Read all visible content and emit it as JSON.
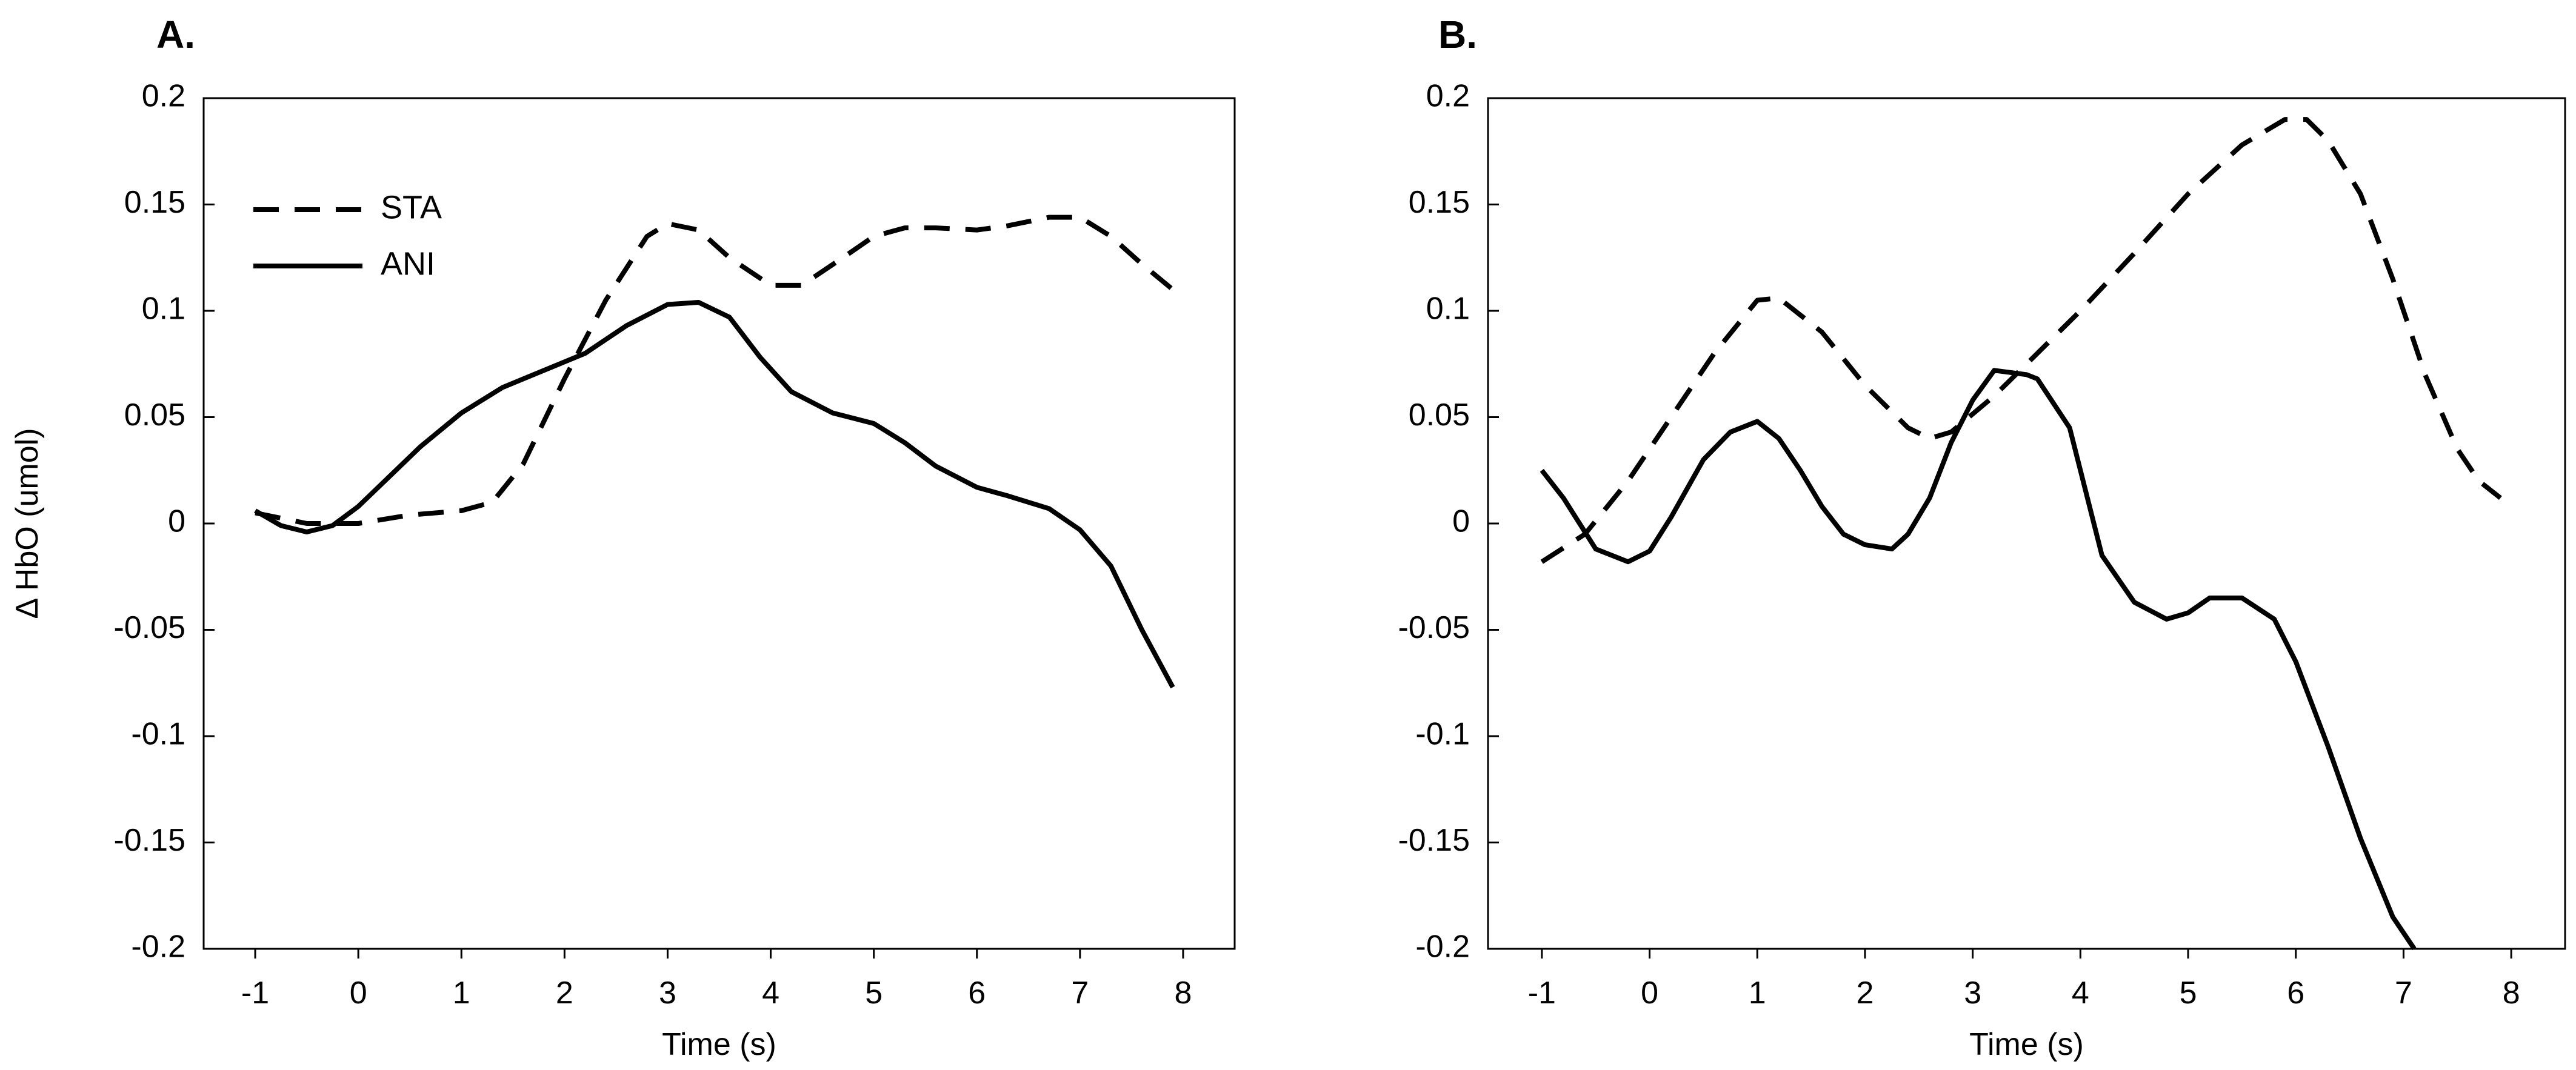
{
  "chart_data": [
    {
      "panel": "A.",
      "type": "line",
      "title": "",
      "xlabel": "Time (s)",
      "ylabel": "Δ HbO (umol)",
      "xlim": [
        -1.5,
        8.5
      ],
      "ylim": [
        -0.2,
        0.2
      ],
      "xticks": [
        -1,
        0,
        1,
        2,
        3,
        4,
        5,
        6,
        7,
        8
      ],
      "yticks": [
        0.2,
        0.15,
        0.1,
        0.05,
        0,
        -0.05,
        -0.1,
        -0.15,
        -0.2
      ],
      "ytick_labels": [
        "0.2",
        "0.15",
        "0.1",
        "0.05",
        "0",
        "-0.05",
        "-0.1",
        "-0.15",
        "-0.2"
      ],
      "legend": [
        {
          "label": "STA",
          "style": "dashed"
        },
        {
          "label": "ANI",
          "style": "solid"
        }
      ],
      "series": [
        {
          "name": "STA",
          "style": "dashed",
          "x": [
            -1.0,
            -0.5,
            0.0,
            0.5,
            1.0,
            1.3,
            1.6,
            2.0,
            2.4,
            2.8,
            3.0,
            3.3,
            3.6,
            4.0,
            4.3,
            4.7,
            5.0,
            5.3,
            5.6,
            6.0,
            6.3,
            6.7,
            7.0,
            7.3,
            7.6,
            7.9
          ],
          "values": [
            0.005,
            0.0,
            0.0,
            0.004,
            0.006,
            0.01,
            0.028,
            0.068,
            0.105,
            0.135,
            0.141,
            0.138,
            0.125,
            0.112,
            0.112,
            0.125,
            0.135,
            0.139,
            0.139,
            0.138,
            0.14,
            0.144,
            0.144,
            0.135,
            0.122,
            0.11
          ]
        },
        {
          "name": "ANI",
          "style": "solid",
          "x": [
            -1.0,
            -0.75,
            -0.5,
            -0.25,
            0.0,
            0.3,
            0.6,
            1.0,
            1.4,
            1.8,
            2.2,
            2.6,
            3.0,
            3.3,
            3.6,
            3.9,
            4.2,
            4.6,
            5.0,
            5.3,
            5.6,
            6.0,
            6.3,
            6.7,
            7.0,
            7.3,
            7.6,
            7.9
          ],
          "values": [
            0.006,
            -0.001,
            -0.004,
            -0.001,
            0.008,
            0.022,
            0.036,
            0.052,
            0.064,
            0.072,
            0.08,
            0.093,
            0.103,
            0.104,
            0.097,
            0.078,
            0.062,
            0.052,
            0.047,
            0.038,
            0.027,
            0.017,
            0.013,
            0.007,
            -0.003,
            -0.02,
            -0.05,
            -0.077
          ]
        }
      ]
    },
    {
      "panel": "B.",
      "type": "line",
      "title": "",
      "xlabel": "Time (s)",
      "ylabel": "",
      "xlim": [
        -1.5,
        8.5
      ],
      "ylim": [
        -0.2,
        0.2
      ],
      "xticks": [
        -1,
        0,
        1,
        2,
        3,
        4,
        5,
        6,
        7,
        8
      ],
      "yticks": [
        0.2,
        0.15,
        0.1,
        0.05,
        0,
        -0.05,
        -0.1,
        -0.15,
        -0.2
      ],
      "ytick_labels": [
        "0.2",
        "0.15",
        "0.1",
        "0.05",
        "0",
        "-0.05",
        "-0.1",
        "-0.15",
        "-0.2"
      ],
      "series": [
        {
          "name": "STA",
          "style": "dashed",
          "x": [
            -1.0,
            -0.6,
            -0.2,
            0.2,
            0.6,
            1.0,
            1.2,
            1.6,
            2.0,
            2.4,
            2.6,
            2.8,
            3.2,
            3.6,
            4.0,
            4.5,
            5.0,
            5.5,
            5.9,
            6.1,
            6.3,
            6.6,
            6.9,
            7.2,
            7.5,
            7.7,
            7.9
          ],
          "values": [
            -0.018,
            -0.005,
            0.02,
            0.05,
            0.08,
            0.105,
            0.106,
            0.09,
            0.065,
            0.045,
            0.04,
            0.043,
            0.06,
            0.08,
            0.1,
            0.127,
            0.155,
            0.178,
            0.19,
            0.19,
            0.18,
            0.155,
            0.115,
            0.07,
            0.035,
            0.02,
            0.012
          ]
        },
        {
          "name": "ANI",
          "style": "solid",
          "x": [
            -1.0,
            -0.8,
            -0.5,
            -0.2,
            0.0,
            0.2,
            0.5,
            0.75,
            1.0,
            1.2,
            1.4,
            1.6,
            1.8,
            2.0,
            2.25,
            2.4,
            2.6,
            2.8,
            3.0,
            3.2,
            3.5,
            3.6,
            3.9,
            4.2,
            4.5,
            4.8,
            5.0,
            5.2,
            5.5,
            5.8,
            6.0,
            6.3,
            6.6,
            6.9,
            7.1
          ],
          "values": [
            0.025,
            0.012,
            -0.012,
            -0.018,
            -0.013,
            0.003,
            0.03,
            0.043,
            0.048,
            0.04,
            0.025,
            0.008,
            -0.005,
            -0.01,
            -0.012,
            -0.005,
            0.012,
            0.038,
            0.058,
            0.072,
            0.07,
            0.068,
            0.045,
            -0.015,
            -0.037,
            -0.045,
            -0.042,
            -0.035,
            -0.035,
            -0.045,
            -0.065,
            -0.105,
            -0.148,
            -0.185,
            -0.2
          ]
        }
      ]
    }
  ]
}
